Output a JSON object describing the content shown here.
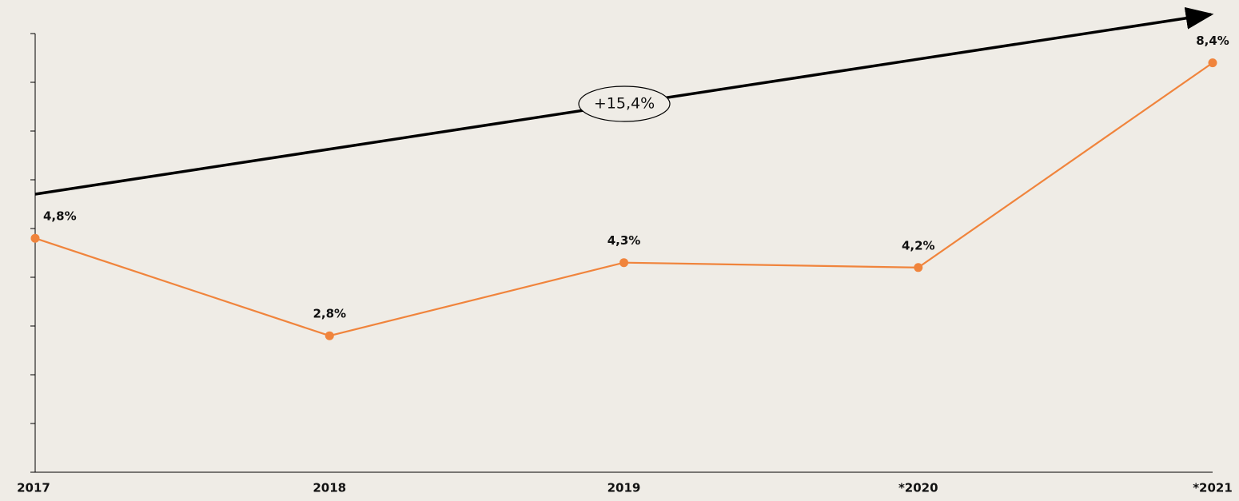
{
  "chart_data": {
    "type": "line",
    "categories": [
      "2017",
      "2018",
      "2019",
      "*2020",
      "*2021"
    ],
    "series": [
      {
        "color": "#f0843c",
        "values": [
          4.8,
          2.8,
          4.3,
          4.2,
          8.4
        ],
        "value_labels": [
          "4,8%",
          "2,8%",
          "4,3%",
          "4,2%",
          "8,4%"
        ]
      }
    ],
    "ylim": [
      0,
      9
    ],
    "yticks": [
      0,
      1,
      2,
      3,
      4,
      5,
      6,
      7,
      8,
      9
    ],
    "annotation": "+15,4%"
  }
}
